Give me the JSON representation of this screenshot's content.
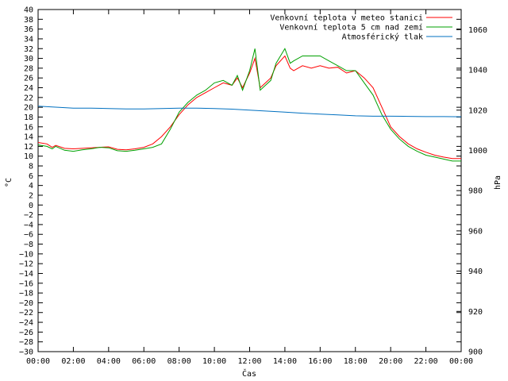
{
  "chart_data": {
    "type": "line",
    "title": "",
    "xlabel": "Čas",
    "ylabel": "°C",
    "y2label": "hPa",
    "xlim": [
      0,
      24
    ],
    "ylim": [
      -30,
      40
    ],
    "y2lim": [
      900,
      1070
    ],
    "x_ticks": [
      "00:00",
      "02:00",
      "04:00",
      "06:00",
      "08:00",
      "10:00",
      "12:00",
      "14:00",
      "16:00",
      "18:00",
      "20:00",
      "22:00",
      "00:00"
    ],
    "y_ticks": [
      40,
      38,
      36,
      34,
      32,
      30,
      28,
      26,
      24,
      22,
      20,
      18,
      16,
      14,
      12,
      10,
      8,
      6,
      4,
      2,
      0,
      -2,
      -4,
      -6,
      -8,
      -10,
      -12,
      -14,
      -16,
      -18,
      -20,
      -22,
      -24,
      -26,
      -28,
      -30
    ],
    "y2_ticks": [
      1060,
      1040,
      1020,
      1000,
      980,
      960,
      940,
      920,
      900
    ],
    "grid": false,
    "legend_position": "top-right",
    "series": [
      {
        "name": "Venkovní teplota v meteo stanici",
        "axis": "left",
        "color": "#ff0000",
        "x": [
          0,
          0.5,
          0.8,
          1,
          1.5,
          2,
          2.5,
          3,
          3.5,
          4,
          4.5,
          5,
          5.5,
          6,
          6.5,
          7,
          7.5,
          8,
          8.5,
          9,
          9.5,
          10,
          10.5,
          11,
          11.3,
          11.6,
          12,
          12.3,
          12.6,
          12.9,
          13.2,
          13.5,
          14,
          14.3,
          14.5,
          15,
          15.5,
          16,
          16.5,
          17,
          17.5,
          18,
          18.5,
          19,
          19.5,
          20,
          20.5,
          21,
          21.5,
          22,
          22.5,
          23,
          23.5,
          24
        ],
        "y": [
          12.8,
          12.5,
          11.8,
          12.2,
          11.6,
          11.5,
          11.6,
          11.7,
          11.8,
          11.9,
          11.4,
          11.3,
          11.5,
          11.8,
          12.5,
          14,
          16,
          18.5,
          20.5,
          22,
          23,
          24,
          25,
          24.5,
          26,
          24,
          27,
          30,
          24,
          25,
          26,
          28.5,
          30.5,
          28,
          27.5,
          28.5,
          28,
          28.5,
          28,
          28.2,
          27,
          27.5,
          26,
          24,
          20,
          16,
          14,
          12.5,
          11.5,
          10.8,
          10.2,
          9.8,
          9.5,
          9.5
        ]
      },
      {
        "name": "Venkovní teplota 5 cm nad zemí",
        "axis": "left",
        "color": "#00a000",
        "x": [
          0,
          0.5,
          0.8,
          1,
          1.5,
          2,
          2.5,
          3,
          3.5,
          4,
          4.5,
          5,
          5.5,
          6,
          6.5,
          7,
          7.5,
          8,
          8.5,
          9,
          9.5,
          10,
          10.5,
          11,
          11.3,
          11.6,
          12,
          12.3,
          12.6,
          12.9,
          13.2,
          13.5,
          14,
          14.3,
          14.5,
          15,
          15.5,
          16,
          16.5,
          17,
          17.5,
          18,
          18.5,
          19,
          19.5,
          20,
          20.5,
          21,
          21.5,
          22,
          22.5,
          23,
          23.5,
          24
        ],
        "y": [
          12.3,
          12,
          11.5,
          12,
          11.2,
          11,
          11.3,
          11.5,
          11.8,
          11.7,
          11.1,
          11,
          11.2,
          11.5,
          11.8,
          12.5,
          15.5,
          19,
          21,
          22.5,
          23.5,
          25,
          25.5,
          24.5,
          26.5,
          23.5,
          27.5,
          32,
          23.5,
          24.5,
          25.5,
          29,
          32,
          29,
          29.5,
          30.5,
          30.5,
          30.5,
          29.5,
          28.5,
          27.5,
          27.5,
          25,
          22.5,
          18.5,
          15.5,
          13.5,
          12,
          11,
          10.2,
          9.8,
          9.4,
          9,
          9
        ]
      },
      {
        "name": "Atmosférický tlak",
        "axis": "right",
        "color": "#0070c0",
        "x": [
          0,
          1,
          2,
          3,
          4,
          5,
          6,
          7,
          8,
          9,
          10,
          11,
          12,
          13,
          14,
          15,
          16,
          17,
          18,
          19,
          20,
          21,
          22,
          23,
          24
        ],
        "y": [
          1022,
          1021.5,
          1021,
          1021,
          1020.8,
          1020.6,
          1020.6,
          1020.8,
          1021,
          1021,
          1020.8,
          1020.5,
          1020,
          1019.5,
          1019,
          1018.5,
          1018,
          1017.6,
          1017.2,
          1017,
          1017,
          1016.9,
          1016.8,
          1016.8,
          1016.7
        ]
      }
    ]
  }
}
